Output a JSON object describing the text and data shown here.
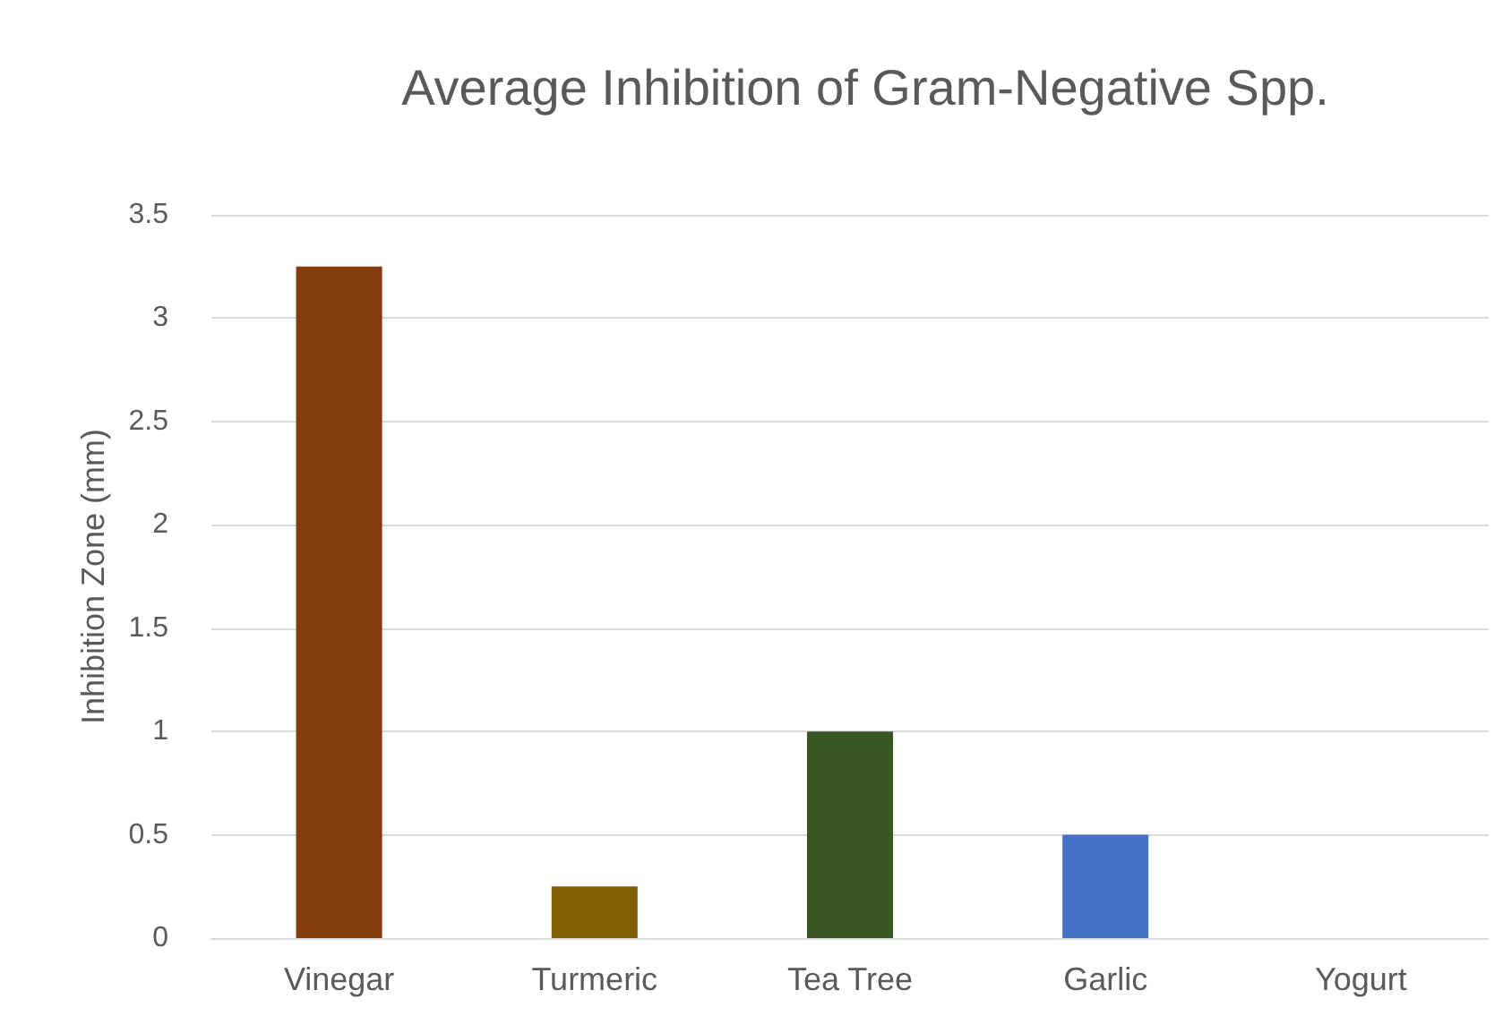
{
  "chart_data": {
    "type": "bar",
    "title": "Average Inhibition of Gram-Negative Spp.",
    "ylabel": "Inhibition Zone (mm)",
    "categories": [
      "Vinegar",
      "Turmeric",
      "Tea Tree",
      "Garlic",
      "Yogurt"
    ],
    "values": [
      3.25,
      0.25,
      1,
      0.5,
      0
    ],
    "colors": [
      "#843c0c",
      "#7f6000",
      "#375623",
      "#4472c4",
      "#ffc000"
    ],
    "ylim": [
      0,
      3.5
    ],
    "yticks": [
      0,
      0.5,
      1,
      1.5,
      2,
      2.5,
      3,
      3.5
    ],
    "grid": "y"
  }
}
